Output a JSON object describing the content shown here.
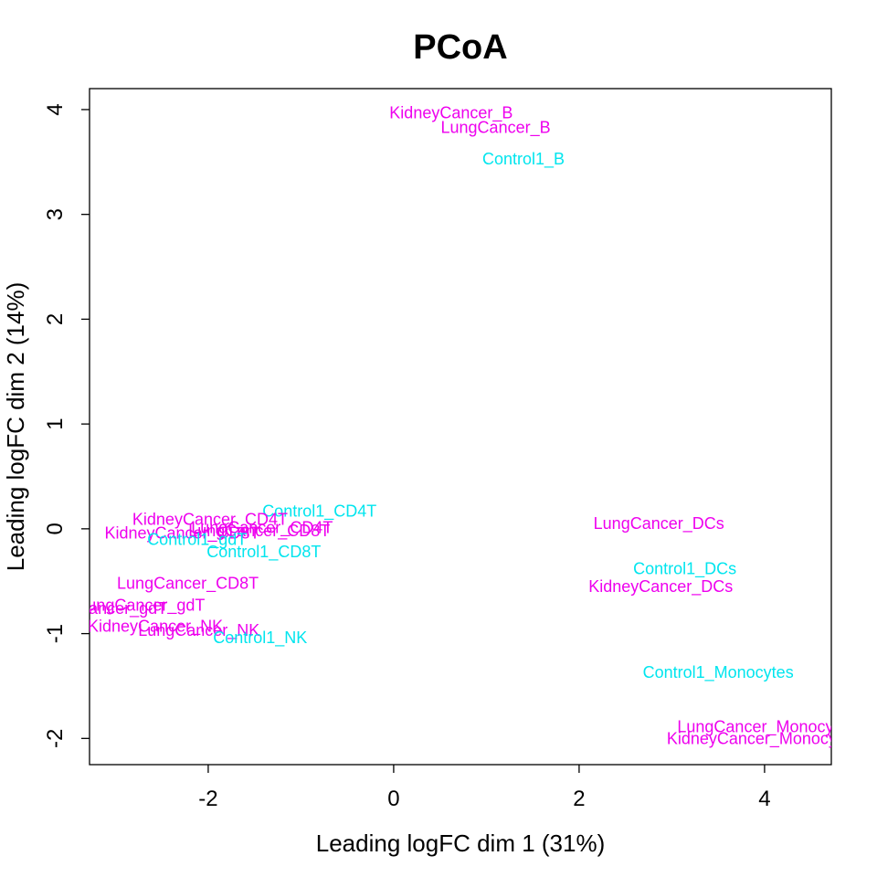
{
  "chart_data": {
    "type": "scatter",
    "title": "PCoA",
    "xlabel": "Leading logFC dim 1 (31%)",
    "ylabel": "Leading logFC dim 2 (14%)",
    "xlim": [
      -3.28,
      4.72
    ],
    "ylim": [
      -2.25,
      4.2
    ],
    "xticks": [
      -2,
      0,
      2,
      4
    ],
    "yticks": [
      -2,
      -1,
      0,
      1,
      2,
      3,
      4
    ],
    "grid": false,
    "legend": "none",
    "colors": {
      "Control1": "#00E5EE",
      "Cancer": "#EE00EE"
    },
    "points": [
      {
        "label": "KidneyCancer_B",
        "x": 0.62,
        "y": 3.97,
        "group": "Cancer"
      },
      {
        "label": "LungCancer_B",
        "x": 1.1,
        "y": 3.83,
        "group": "Cancer"
      },
      {
        "label": "Control1_B",
        "x": 1.4,
        "y": 3.53,
        "group": "Control1"
      },
      {
        "label": "Control1_CD4T",
        "x": -0.8,
        "y": 0.17,
        "group": "Control1"
      },
      {
        "label": "KidneyCancer_CD4T",
        "x": -1.98,
        "y": 0.09,
        "group": "Cancer"
      },
      {
        "label": "LungCancer_CD4T",
        "x": -1.42,
        "y": 0.01,
        "group": "Cancer"
      },
      {
        "label": "LungCancer_CD8T",
        "x": -1.45,
        "y": -0.02,
        "group": "Cancer"
      },
      {
        "label": "KidneyCancer_CD8T",
        "x": -2.28,
        "y": -0.04,
        "group": "Cancer"
      },
      {
        "label": "Control1_gdT",
        "x": -2.12,
        "y": -0.1,
        "group": "Control1"
      },
      {
        "label": "Control1_CD8T",
        "x": -1.4,
        "y": -0.22,
        "group": "Control1"
      },
      {
        "label": "LungCancer_CD8T",
        "x": -2.22,
        "y": -0.52,
        "group": "Cancer"
      },
      {
        "label": "LungCancer_gdT",
        "x": -2.72,
        "y": -0.73,
        "group": "Cancer"
      },
      {
        "label": "KidneyCancer_gdT",
        "x": -3.2,
        "y": -0.76,
        "group": "Cancer"
      },
      {
        "label": "KidneyCancer_NK",
        "x": -2.57,
        "y": -0.93,
        "group": "Cancer"
      },
      {
        "label": "LungCancer_NK",
        "x": -2.1,
        "y": -0.97,
        "group": "Cancer"
      },
      {
        "label": "Control1_NK",
        "x": -1.44,
        "y": -1.04,
        "group": "Control1"
      },
      {
        "label": "LungCancer_DCs",
        "x": 2.86,
        "y": 0.05,
        "group": "Cancer"
      },
      {
        "label": "Control1_DCs",
        "x": 3.14,
        "y": -0.38,
        "group": "Control1"
      },
      {
        "label": "KidneyCancer_DCs",
        "x": 2.88,
        "y": -0.55,
        "group": "Cancer"
      },
      {
        "label": "Control1_Monocytes",
        "x": 3.5,
        "y": -1.37,
        "group": "Control1"
      },
      {
        "label": "LungCancer_Monocytes",
        "x": 4.02,
        "y": -1.89,
        "group": "Cancer"
      },
      {
        "label": "KidneyCancer_Monocytes",
        "x": 3.98,
        "y": -2.0,
        "group": "Cancer"
      }
    ]
  }
}
